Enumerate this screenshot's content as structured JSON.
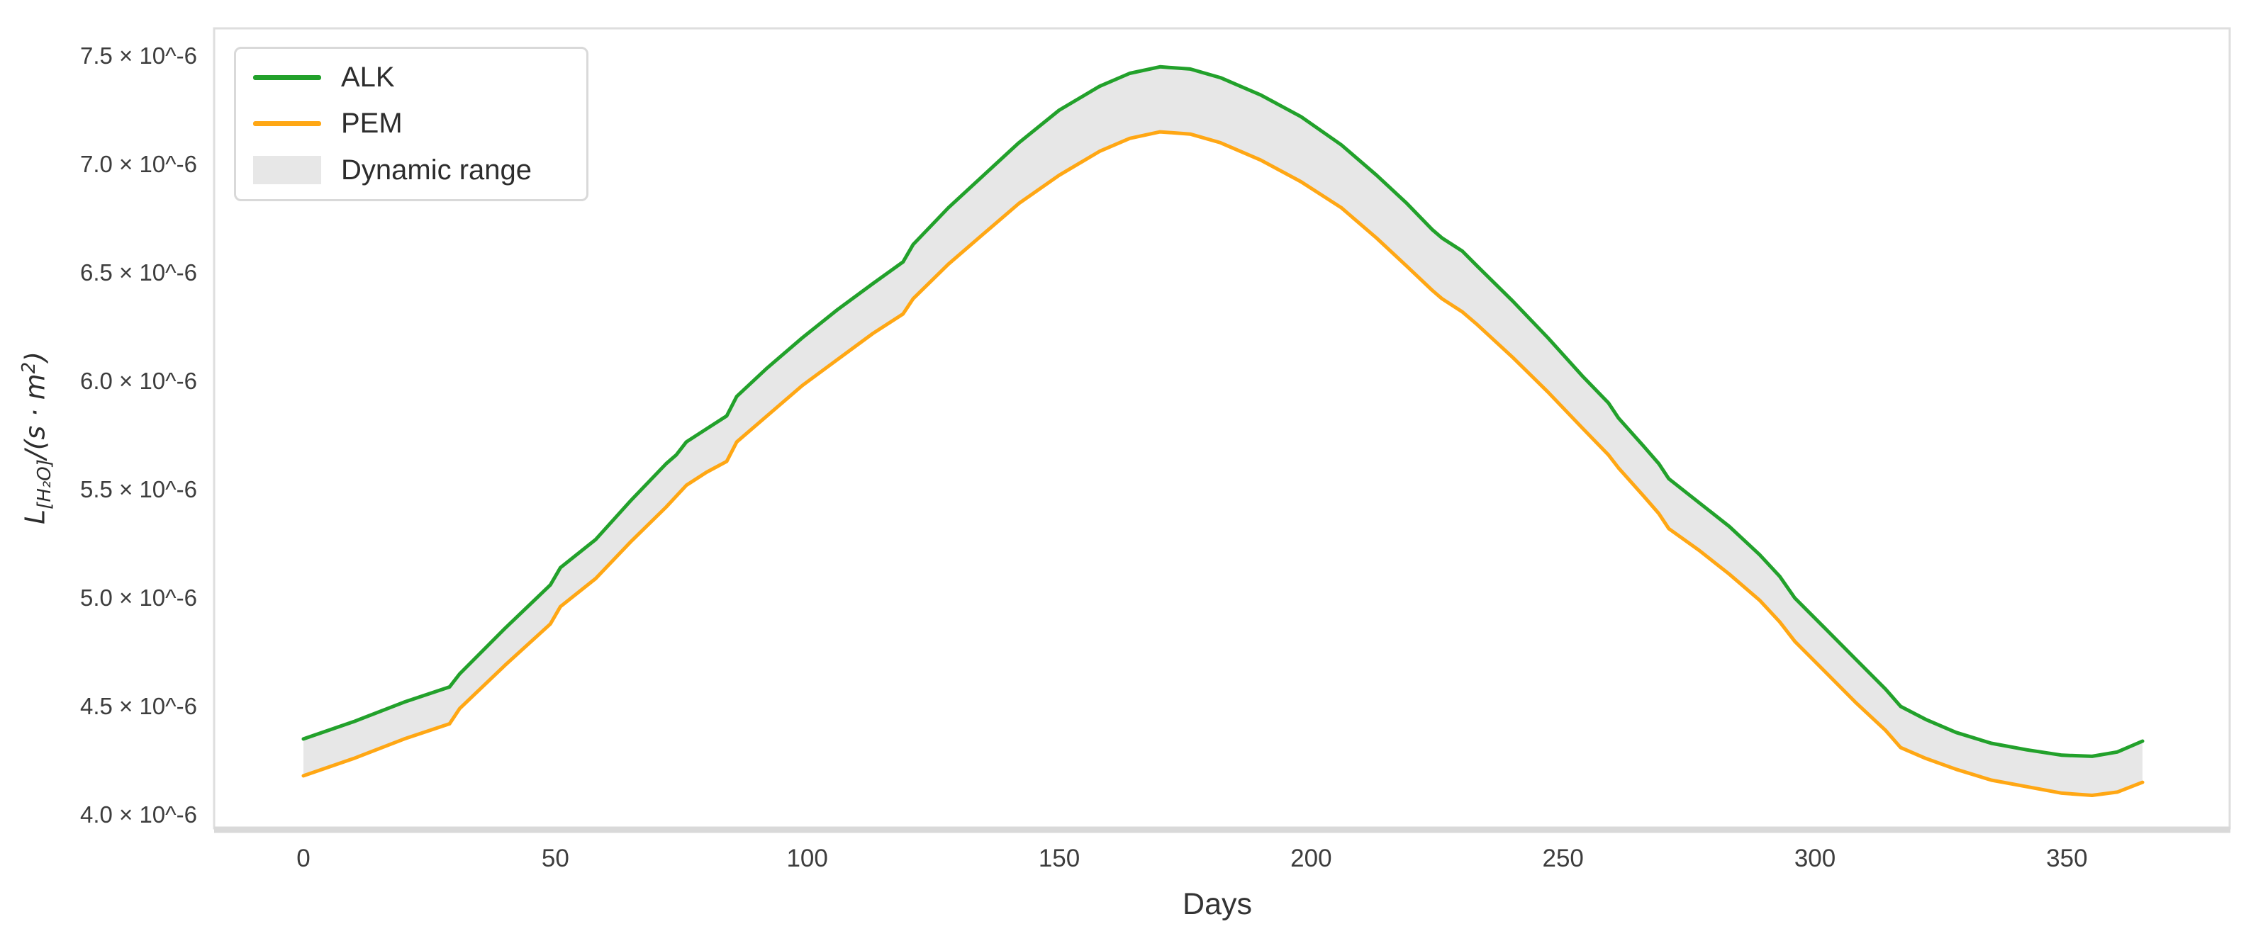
{
  "chart_data": {
    "type": "area",
    "title": "",
    "xlabel": "Days",
    "ylabel": "L_[H2O]/(s · m^2)",
    "ylabel_parts": {
      "base": "L",
      "sub": "[H₂O]",
      "mid": "/(s · m",
      "sup": "2",
      "end": ")"
    },
    "units": "y values are ×10^-6",
    "grid": false,
    "legend_position": "upper left",
    "xlim": [
      -18,
      383
    ],
    "ylim": [
      3.95,
      7.65
    ],
    "x_ticks": [
      0,
      50,
      100,
      150,
      200,
      250,
      300,
      350
    ],
    "y_ticks": [
      {
        "value": 7.5,
        "label": "7.5 × 10^-6"
      },
      {
        "value": 7.0,
        "label": "7.0 × 10^-6"
      },
      {
        "value": 6.5,
        "label": "6.5 × 10^-6"
      },
      {
        "value": 6.0,
        "label": "6.0 × 10^-6"
      },
      {
        "value": 5.5,
        "label": "5.5 × 10^-6"
      },
      {
        "value": 5.0,
        "label": "5.0 × 10^-6"
      },
      {
        "value": 4.5,
        "label": "4.5 × 10^-6"
      },
      {
        "value": 4.0,
        "label": "4.0 × 10^-6"
      }
    ],
    "x": [
      0,
      10,
      20,
      29,
      31,
      40,
      49,
      51,
      58,
      65,
      72,
      74,
      76,
      80,
      84,
      86,
      92,
      99,
      106,
      113,
      119,
      121,
      128,
      135,
      142,
      150,
      158,
      164,
      170,
      176,
      182,
      190,
      198,
      206,
      213,
      219,
      224,
      226,
      230,
      233,
      240,
      247,
      254,
      259,
      261,
      266,
      269,
      271,
      277,
      283,
      289,
      293,
      296,
      302,
      308,
      314,
      317,
      322,
      328,
      335,
      342,
      349,
      355,
      360,
      365
    ],
    "series": [
      {
        "name": "ALK",
        "color": "#22a12b",
        "values": [
          4.35,
          4.43,
          4.52,
          4.59,
          4.65,
          4.86,
          5.06,
          5.14,
          5.27,
          5.45,
          5.62,
          5.66,
          5.72,
          5.78,
          5.84,
          5.93,
          6.06,
          6.2,
          6.33,
          6.45,
          6.55,
          6.63,
          6.8,
          6.95,
          7.1,
          7.25,
          7.36,
          7.42,
          7.45,
          7.44,
          7.4,
          7.32,
          7.22,
          7.09,
          6.95,
          6.82,
          6.7,
          6.66,
          6.6,
          6.53,
          6.37,
          6.2,
          6.02,
          5.9,
          5.83,
          5.7,
          5.62,
          5.55,
          5.44,
          5.33,
          5.2,
          5.1,
          5.0,
          4.86,
          4.72,
          4.58,
          4.5,
          4.44,
          4.38,
          4.33,
          4.3,
          4.275,
          4.27,
          4.29,
          4.34
        ]
      },
      {
        "name": "PEM",
        "color": "#ffa714",
        "values": [
          4.18,
          4.26,
          4.35,
          4.42,
          4.49,
          4.69,
          4.88,
          4.96,
          5.09,
          5.26,
          5.42,
          5.47,
          5.52,
          5.58,
          5.63,
          5.72,
          5.84,
          5.98,
          6.1,
          6.22,
          6.31,
          6.38,
          6.54,
          6.68,
          6.82,
          6.95,
          7.06,
          7.12,
          7.15,
          7.14,
          7.1,
          7.02,
          6.92,
          6.8,
          6.66,
          6.53,
          6.42,
          6.38,
          6.32,
          6.26,
          6.11,
          5.95,
          5.78,
          5.66,
          5.6,
          5.47,
          5.39,
          5.32,
          5.22,
          5.11,
          4.99,
          4.89,
          4.8,
          4.66,
          4.52,
          4.39,
          4.31,
          4.26,
          4.21,
          4.16,
          4.13,
          4.1,
          4.09,
          4.105,
          4.15
        ]
      }
    ],
    "band": {
      "name": "Dynamic range",
      "between": [
        "ALK",
        "PEM"
      ],
      "color": "#e7e7e7"
    },
    "legend": [
      {
        "label": "ALK",
        "type": "line",
        "color": "#22a12b"
      },
      {
        "label": "PEM",
        "type": "line",
        "color": "#ffa714"
      },
      {
        "label": "Dynamic range",
        "type": "band",
        "color": "#e7e7e7"
      }
    ],
    "colors": {
      "frame": "#dedede",
      "axis_line": "#d9d9d9",
      "tick_label": "#3d3d3d",
      "text": "#2d2d2d",
      "background": "#ffffff"
    }
  }
}
